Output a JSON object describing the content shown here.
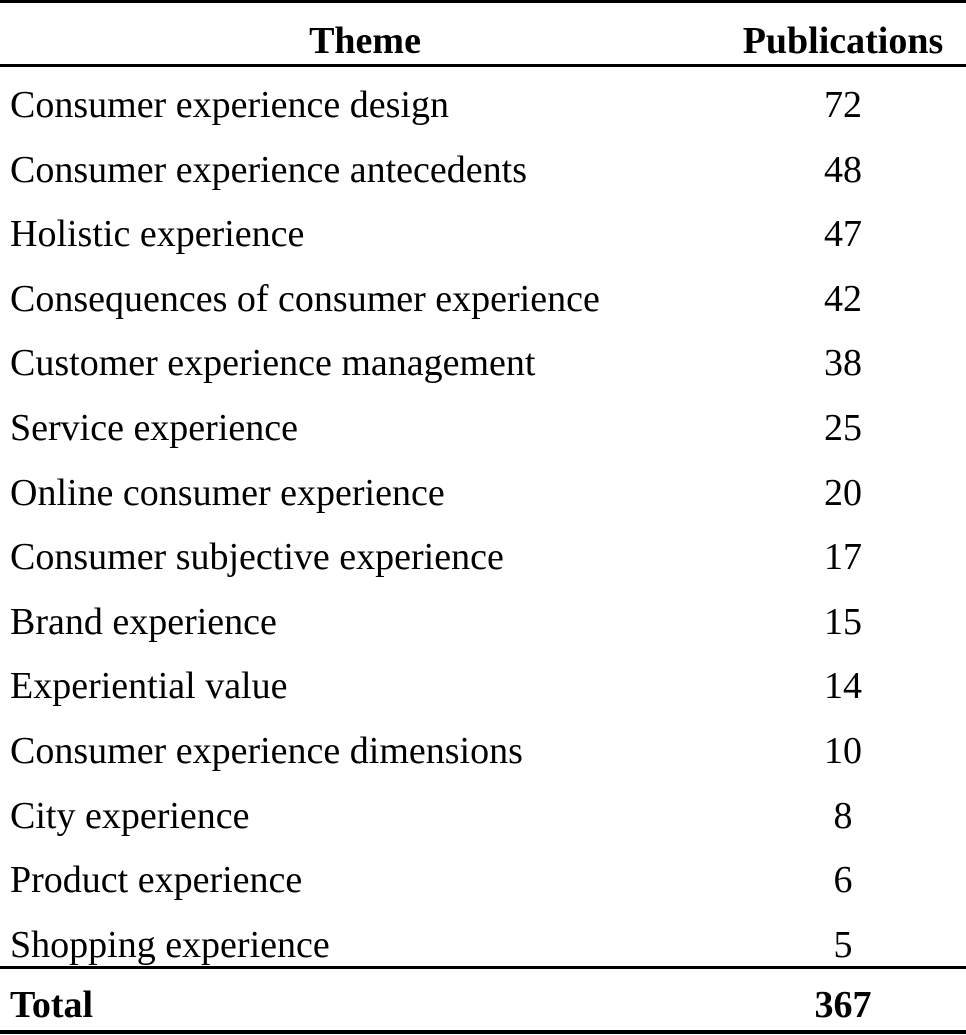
{
  "table": {
    "header": {
      "theme": "Theme",
      "publications": "Publications"
    },
    "rows": [
      {
        "theme": "Consumer experience design",
        "publications": "72"
      },
      {
        "theme": "Consumer experience antecedents",
        "publications": "48"
      },
      {
        "theme": "Holistic experience",
        "publications": "47"
      },
      {
        "theme": "Consequences of consumer experience",
        "publications": "42"
      },
      {
        "theme": "Customer experience management",
        "publications": "38"
      },
      {
        "theme": "Service experience",
        "publications": "25"
      },
      {
        "theme": "Online consumer experience",
        "publications": "20"
      },
      {
        "theme": "Consumer subjective experience",
        "publications": "17"
      },
      {
        "theme": "Brand experience",
        "publications": "15"
      },
      {
        "theme": "Experiential value",
        "publications": "14"
      },
      {
        "theme": "Consumer experience dimensions",
        "publications": "10"
      },
      {
        "theme": "City experience",
        "publications": "8"
      },
      {
        "theme": "Product experience",
        "publications": "6"
      },
      {
        "theme": "Shopping experience",
        "publications": "5"
      }
    ],
    "total": {
      "label": "Total",
      "value": "367"
    }
  }
}
